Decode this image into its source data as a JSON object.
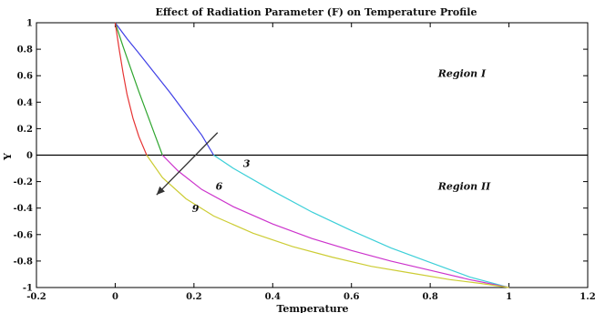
{
  "chart_data": {
    "type": "line",
    "title": "Effect of Radiation Parameter (F) on Temperature Profile",
    "xlabel": "Temperature",
    "ylabel": "Y",
    "xlim": [
      -0.2,
      1.2
    ],
    "ylim": [
      -1,
      1
    ],
    "xticks": [
      "-0.2",
      "0",
      "0.2",
      "0.4",
      "0.6",
      "0.8",
      "1",
      "1.2"
    ],
    "yticks": [
      "1",
      "0.8",
      "0.6",
      "0.4",
      "0.2",
      "0",
      "-0.2",
      "-0.4",
      "-0.6",
      "-0.8",
      "-1"
    ],
    "grid": false,
    "annotations": [
      {
        "text": "Region I",
        "x": 0.82,
        "y": 0.59
      },
      {
        "text": "Region II",
        "x": 0.82,
        "y": -0.26
      }
    ],
    "series": [
      {
        "name": "3",
        "segments": [
          {
            "color": "#3f3fe6",
            "x": [
              0,
              0.03,
              0.06,
              0.1,
              0.14,
              0.18,
              0.22,
              0.25
            ],
            "y": [
              1,
              0.88,
              0.77,
              0.62,
              0.47,
              0.31,
              0.15,
              0.0
            ]
          },
          {
            "color": "#3ccfd8",
            "x": [
              0.25,
              0.3,
              0.4,
              0.5,
              0.6,
              0.7,
              0.8,
              0.9,
              1.0
            ],
            "y": [
              0.0,
              -0.1,
              -0.27,
              -0.43,
              -0.57,
              -0.7,
              -0.81,
              -0.92,
              -1.0
            ]
          }
        ]
      },
      {
        "name": "6",
        "segments": [
          {
            "color": "#2ea52e",
            "x": [
              0,
              0.02,
              0.04,
              0.06,
              0.08,
              0.1,
              0.12
            ],
            "y": [
              1,
              0.82,
              0.65,
              0.48,
              0.32,
              0.16,
              0.0
            ]
          },
          {
            "color": "#cc33cc",
            "x": [
              0.12,
              0.16,
              0.22,
              0.3,
              0.4,
              0.5,
              0.6,
              0.7,
              0.8,
              0.9,
              1.0
            ],
            "y": [
              0.0,
              -0.12,
              -0.26,
              -0.39,
              -0.52,
              -0.63,
              -0.72,
              -0.8,
              -0.87,
              -0.94,
              -1.0
            ]
          }
        ]
      },
      {
        "name": "9",
        "segments": [
          {
            "color": "#e63333",
            "x": [
              0,
              0.01,
              0.02,
              0.03,
              0.045,
              0.06,
              0.08
            ],
            "y": [
              1,
              0.8,
              0.62,
              0.46,
              0.28,
              0.14,
              0.0
            ]
          },
          {
            "color": "#cccc33",
            "x": [
              0.08,
              0.12,
              0.18,
              0.25,
              0.35,
              0.45,
              0.55,
              0.65,
              0.75,
              0.85,
              0.93,
              1.0
            ],
            "y": [
              0.0,
              -0.17,
              -0.33,
              -0.46,
              -0.59,
              -0.69,
              -0.77,
              -0.84,
              -0.89,
              -0.94,
              -0.97,
              -1.0
            ]
          }
        ]
      }
    ],
    "curve_labels": [
      {
        "text": "3",
        "x": 0.325,
        "y": -0.09
      },
      {
        "text": "6",
        "x": 0.255,
        "y": -0.26
      },
      {
        "text": "9",
        "x": 0.195,
        "y": -0.43
      }
    ],
    "arrow": {
      "from": [
        0.26,
        0.17
      ],
      "to": [
        0.105,
        -0.3
      ],
      "color": "#333333"
    },
    "reference_line": {
      "y": 0,
      "color": "#000000"
    }
  }
}
